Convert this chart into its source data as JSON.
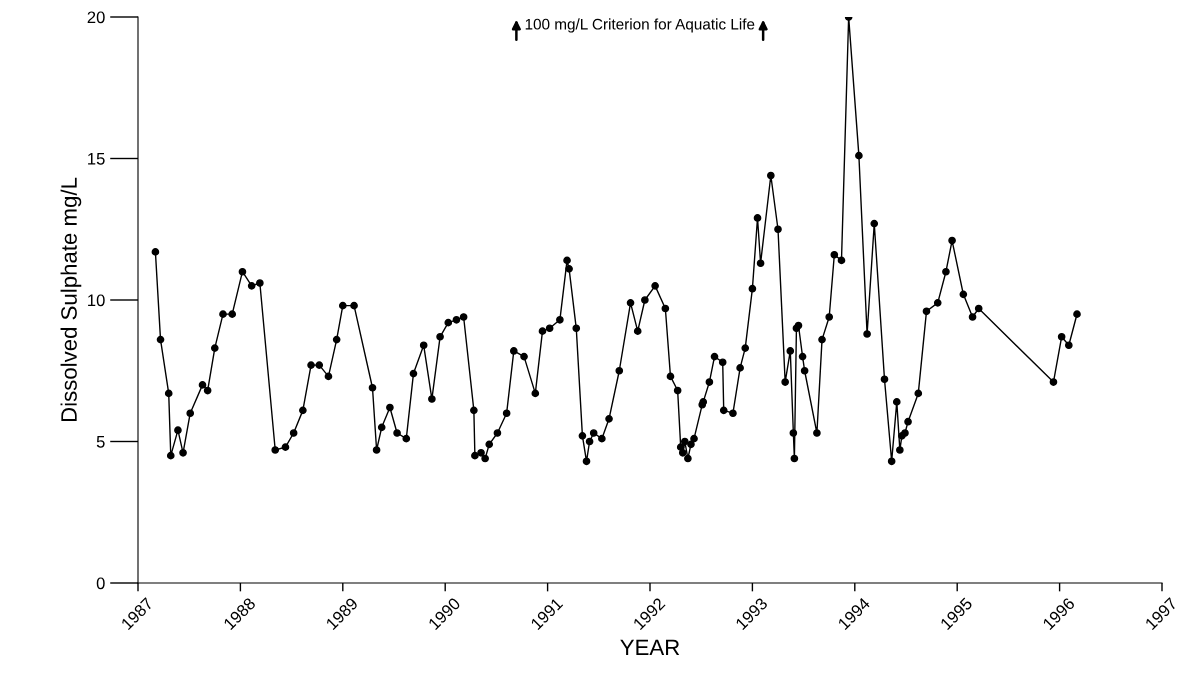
{
  "chart_data": {
    "type": "line",
    "xlabel": "YEAR",
    "ylabel": "Dissolved Sulphate mg/L",
    "annotations": [
      "100 mg/L Criterion for Aquatic Life"
    ],
    "xlim": [
      1987,
      1997
    ],
    "xticks": [
      1987,
      1988,
      1989,
      1990,
      1991,
      1992,
      1993,
      1994,
      1995,
      1996,
      1997
    ],
    "ylim": [
      0,
      20
    ],
    "yticks": [
      0,
      5,
      10,
      15,
      20
    ],
    "grid": false,
    "marker": "circle",
    "line_style": "solid",
    "series": [
      {
        "color": "#000000",
        "x": [
          1987.17,
          1987.22,
          1987.3,
          1987.32,
          1987.39,
          1987.44,
          1987.51,
          1987.63,
          1987.68,
          1987.75,
          1987.83,
          1987.92,
          1988.02,
          1988.11,
          1988.19,
          1988.34,
          1988.44,
          1988.52,
          1988.61,
          1988.69,
          1988.77,
          1988.86,
          1988.94,
          1989.0,
          1989.11,
          1989.29,
          1989.33,
          1989.38,
          1989.46,
          1989.53,
          1989.62,
          1989.69,
          1989.79,
          1989.87,
          1989.95,
          1990.03,
          1990.11,
          1990.18,
          1990.28,
          1990.29,
          1990.35,
          1990.39,
          1990.43,
          1990.51,
          1990.6,
          1990.67,
          1990.77,
          1990.88,
          1990.95,
          1991.02,
          1991.12,
          1991.19,
          1991.21,
          1991.28,
          1991.34,
          1991.38,
          1991.41,
          1991.45,
          1991.53,
          1991.6,
          1991.7,
          1991.81,
          1991.88,
          1991.95,
          1992.05,
          1992.15,
          1992.2,
          1992.27,
          1992.3,
          1992.32,
          1992.34,
          1992.37,
          1992.4,
          1992.43,
          1992.51,
          1992.52,
          1992.58,
          1992.63,
          1992.71,
          1992.72,
          1992.81,
          1992.88,
          1992.93,
          1993.0,
          1993.05,
          1993.08,
          1993.18,
          1993.25,
          1993.32,
          1993.37,
          1993.4,
          1993.41,
          1993.43,
          1993.45,
          1993.49,
          1993.51,
          1993.63,
          1993.68,
          1993.75,
          1993.8,
          1993.87,
          1993.94,
          1994.04,
          1994.12,
          1994.19,
          1994.29,
          1994.36,
          1994.41,
          1994.44,
          1994.46,
          1994.49,
          1994.52,
          1994.62,
          1994.7,
          1994.81,
          1994.89,
          1994.95,
          1995.06,
          1995.15,
          1995.21,
          1995.94,
          1996.02,
          1996.09,
          1996.17
        ],
        "values": [
          11.7,
          8.6,
          6.7,
          4.5,
          5.4,
          4.6,
          6.0,
          7.0,
          6.8,
          8.3,
          9.5,
          9.5,
          11.0,
          10.5,
          10.6,
          4.7,
          4.8,
          5.3,
          6.1,
          7.7,
          7.7,
          7.3,
          8.6,
          9.8,
          9.8,
          6.9,
          4.7,
          5.5,
          6.2,
          5.3,
          5.1,
          7.4,
          8.4,
          6.5,
          8.7,
          9.2,
          9.3,
          9.4,
          6.1,
          4.5,
          4.6,
          4.4,
          4.9,
          5.3,
          6.0,
          8.2,
          8.0,
          6.7,
          8.9,
          9.0,
          9.3,
          11.4,
          11.1,
          9.0,
          5.2,
          4.3,
          5.0,
          5.3,
          5.1,
          5.8,
          7.5,
          9.9,
          8.9,
          10.0,
          10.5,
          9.7,
          7.3,
          6.8,
          4.8,
          4.6,
          5.0,
          4.4,
          4.9,
          5.1,
          6.3,
          6.4,
          7.1,
          8.0,
          7.8,
          6.1,
          6.0,
          7.6,
          8.3,
          10.4,
          12.9,
          11.3,
          14.4,
          12.5,
          7.1,
          8.2,
          5.3,
          4.4,
          9.0,
          9.1,
          8.0,
          7.5,
          5.3,
          8.6,
          9.4,
          11.6,
          11.4,
          20.0,
          15.1,
          8.8,
          12.7,
          7.2,
          4.3,
          6.4,
          4.7,
          5.2,
          5.3,
          5.7,
          6.7,
          9.6,
          9.9,
          11.0,
          12.1,
          10.2,
          9.4,
          9.7,
          7.1,
          8.7,
          8.4,
          9.5
        ]
      }
    ]
  }
}
